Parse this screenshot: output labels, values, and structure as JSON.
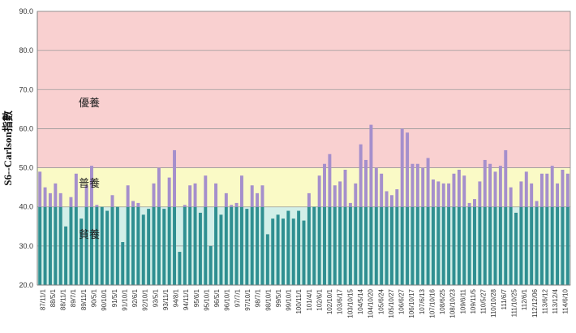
{
  "chart_data": {
    "type": "bar",
    "ylabel": "S6--Carlson指數",
    "ylim": [
      20,
      90
    ],
    "yticks": [
      "20.0",
      "30.0",
      "40.0",
      "50.0",
      "60.0",
      "70.0",
      "80.0",
      "90.0"
    ],
    "grid": true,
    "zones": [
      {
        "label": "優養",
        "from": 50,
        "to": 90,
        "color": "#f9d0d0"
      },
      {
        "label": "普養",
        "from": 40,
        "to": 50,
        "color": "#fafac6"
      },
      {
        "label": "貧養",
        "from": 20,
        "to": 40,
        "color": "#d2efe8"
      }
    ],
    "colors": {
      "bar_low": "#2f8f91",
      "bar_high": "#a58fcc"
    },
    "values": [
      49,
      45,
      43.5,
      46,
      43.5,
      35,
      42.5,
      48.5,
      37,
      45.5,
      50.5,
      40.5,
      40,
      39,
      43,
      40,
      31,
      45.5,
      41.5,
      41,
      38,
      39.5,
      46,
      50,
      39.5,
      47.5,
      54.5,
      28.5,
      40.5,
      45.5,
      46,
      38.5,
      48,
      30,
      46,
      38,
      43.5,
      40.5,
      41,
      48,
      39.5,
      45.5,
      43.5,
      45.5,
      33,
      37,
      38,
      37,
      39,
      37,
      39,
      36.5,
      43.5,
      40,
      48,
      51,
      53.5,
      45.5,
      46.5,
      49.5,
      41,
      46,
      56,
      52,
      61,
      50,
      48.5,
      44,
      43,
      44.5,
      60,
      59,
      51,
      51,
      50,
      52.5,
      47,
      46.5,
      46,
      46,
      48.5,
      49.5,
      48,
      41,
      42,
      46.5,
      52,
      51,
      49,
      50.5,
      54.5,
      45,
      38.5,
      46.5,
      49,
      46,
      41.5,
      48.5,
      48.5,
      50.5,
      46,
      49.5,
      48.5
    ],
    "x_tick_labels": [
      "87/11/1",
      "88/5/1",
      "88/11/1",
      "89/7/1",
      "89/11/1",
      "90/5/1",
      "90/10/1",
      "91/5/1",
      "91/10/1",
      "92/6/1",
      "92/10/1",
      "93/5/1",
      "93/11/1",
      "94/8/1",
      "94/11/1",
      "95/6/1",
      "95/10/1",
      "96/5/1",
      "96/10/1",
      "97/7/1",
      "97/10/1",
      "98/7/1",
      "98/10/1",
      "99/5/1",
      "99/10/1",
      "100/11/1",
      "101/4/1",
      "102/6/1",
      "102/10/1",
      "103/6/17",
      "103/10/15",
      "104/5/14",
      "104/10/20",
      "105/6/24",
      "105/10/27",
      "106/6/27",
      "106/10/17",
      "107/6/13",
      "107/10/16",
      "108/6/25",
      "108/10/23",
      "109/6/11",
      "109/11/5",
      "110/5/27",
      "110/10/28",
      "111/6/7",
      "111/10/25",
      "112/6/1",
      "112/12/06",
      "113/6/12",
      "113/12/4",
      "114/6/10"
    ]
  }
}
